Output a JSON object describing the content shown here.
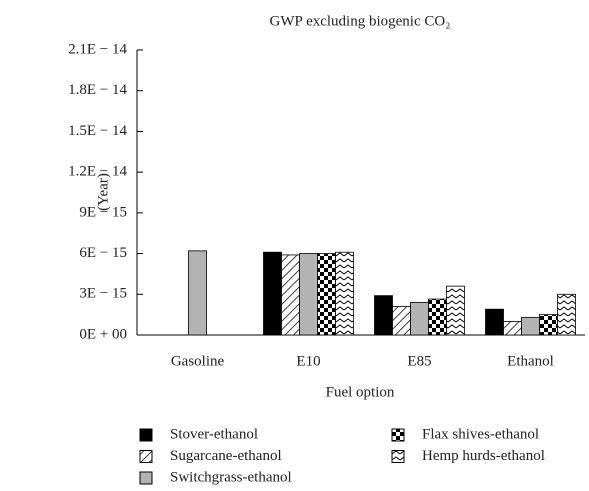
{
  "chart_data": {
    "type": "bar",
    "title": "GWP excluding biogenic CO₂",
    "xlabel": "Fuel option",
    "ylabel": "(Year)",
    "categories": [
      "Gasoline",
      "E10",
      "E85",
      "Ethanol"
    ],
    "series": [
      {
        "name": "Stover-ethanol",
        "color": "#000000",
        "pattern": "solid",
        "values": [
          null,
          6.1e-15,
          2.9e-15,
          1.9e-15
        ]
      },
      {
        "name": "Sugarcane-ethanol",
        "color": "#000000",
        "pattern": "diagonal",
        "values": [
          null,
          5.9e-15,
          2.1e-15,
          1e-15
        ]
      },
      {
        "name": "Switchgrass-ethanol",
        "color": "#b3b3b3",
        "pattern": "solid",
        "values": [
          6.2e-15,
          6e-15,
          2.4e-15,
          1.3e-15
        ]
      },
      {
        "name": "Flax shives-ethanol",
        "color": "#000000",
        "pattern": "checker",
        "values": [
          null,
          6e-15,
          2.65e-15,
          1.5e-15
        ]
      },
      {
        "name": "Hemp hurds-ethanol",
        "color": "#000000",
        "pattern": "zigzag",
        "values": [
          null,
          6.1e-15,
          3.6e-15,
          3e-15
        ]
      }
    ],
    "ylim": [
      0,
      2.1e-14
    ],
    "yticks": [
      {
        "value": 0,
        "label": "0E + 00"
      },
      {
        "value": 3e-15,
        "label": "3E − 15"
      },
      {
        "value": 6e-15,
        "label": "6E − 15"
      },
      {
        "value": 9e-15,
        "label": "9E − 15"
      },
      {
        "value": 1.2e-14,
        "label": "1.2E − 14"
      },
      {
        "value": 1.5e-14,
        "label": "1.5E − 14"
      },
      {
        "value": 1.8e-14,
        "label": "1.8E − 14"
      },
      {
        "value": 2.1e-14,
        "label": "2.1E − 14"
      }
    ],
    "grid": false,
    "legend": "bottom"
  }
}
